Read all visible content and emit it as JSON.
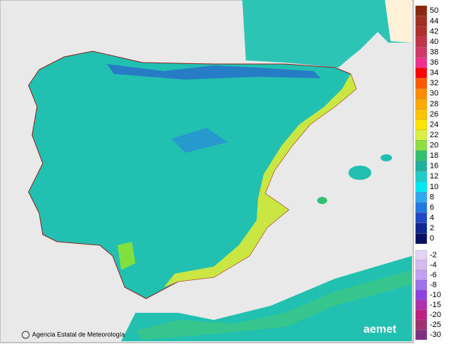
{
  "legend": {
    "entries": [
      {
        "label": 50,
        "color": "#8b2a10"
      },
      {
        "label": 44,
        "color": "#a03020"
      },
      {
        "label": 42,
        "color": "#b03030"
      },
      {
        "label": 40,
        "color": "#c03448"
      },
      {
        "label": 38,
        "color": "#d03868"
      },
      {
        "label": 36,
        "color": "#f0308c"
      },
      {
        "label": 34,
        "color": "#ff0000"
      },
      {
        "label": 32,
        "color": "#ff5a00"
      },
      {
        "label": 30,
        "color": "#ff8c00"
      },
      {
        "label": 28,
        "color": "#ffa800"
      },
      {
        "label": 26,
        "color": "#ffc400"
      },
      {
        "label": 24,
        "color": "#ffe400"
      },
      {
        "label": 22,
        "color": "#d8f040"
      },
      {
        "label": 20,
        "color": "#8ee040"
      },
      {
        "label": 18,
        "color": "#30c070"
      },
      {
        "label": 16,
        "color": "#20b0a0"
      },
      {
        "label": 12,
        "color": "#20cdc8"
      },
      {
        "label": 10,
        "color": "#00e8f0"
      },
      {
        "label": 8,
        "color": "#30a8f0"
      },
      {
        "label": 6,
        "color": "#2478e0"
      },
      {
        "label": 4,
        "color": "#2048c0"
      },
      {
        "label": 2,
        "color": "#102890"
      },
      {
        "label": 0,
        "color": "#081060"
      }
    ],
    "negative_entries": [
      {
        "label": -2,
        "color": "#e4d4f4"
      },
      {
        "label": -4,
        "color": "#d4bcf0"
      },
      {
        "label": -6,
        "color": "#c0a0f0"
      },
      {
        "label": -8,
        "color": "#a070e8"
      },
      {
        "label": -10,
        "color": "#8c40e0"
      },
      {
        "label": -15,
        "color": "#b030b0"
      },
      {
        "label": -20,
        "color": "#c02080"
      },
      {
        "label": -25,
        "color": "#a03070"
      },
      {
        "label": -30,
        "color": "#803080"
      }
    ]
  },
  "footer": {
    "agency": "Agencia Estatal de Meteorología",
    "logo": "aemet"
  }
}
